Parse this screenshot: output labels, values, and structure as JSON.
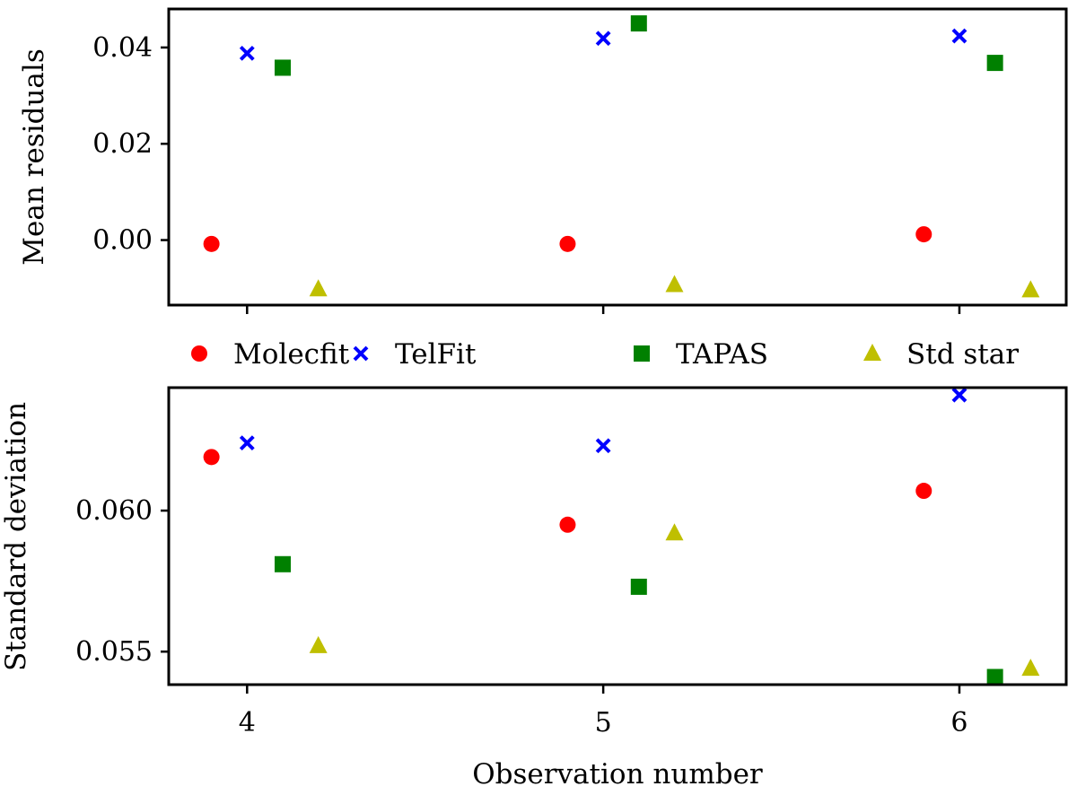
{
  "chart_data": [
    {
      "type": "scatter",
      "ylabel": "Mean residuals",
      "xlabel": "",
      "xlim": [
        3.78,
        6.3
      ],
      "ylim": [
        -0.0135,
        0.048
      ],
      "yticks": [
        0.0,
        0.02,
        0.04
      ],
      "ytick_labels": [
        "0.00",
        "0.02",
        "0.04"
      ],
      "xticks": [
        4,
        5,
        6
      ],
      "xtick_labels": [
        "",
        "",
        ""
      ],
      "series": [
        {
          "name": "Molecfit",
          "marker": "circle",
          "color": "#ff0000",
          "x": [
            3.9,
            4.9,
            5.9
          ],
          "y": [
            -0.0008,
            -0.0008,
            0.0012
          ]
        },
        {
          "name": "TelFit",
          "marker": "x",
          "color": "#0000ff",
          "x": [
            4.0,
            5.0,
            6.0
          ],
          "y": [
            0.0388,
            0.0419,
            0.0424
          ]
        },
        {
          "name": "TAPAS",
          "marker": "square",
          "color": "#008000",
          "x": [
            4.1,
            5.1,
            6.1
          ],
          "y": [
            0.0358,
            0.045,
            0.0368
          ]
        },
        {
          "name": "Std star",
          "marker": "triangle",
          "color": "#bfbf00",
          "x": [
            4.2,
            5.2,
            6.2
          ],
          "y": [
            -0.0102,
            -0.0093,
            -0.0104
          ]
        }
      ]
    },
    {
      "type": "scatter",
      "ylabel": "Standard deviation",
      "xlabel": "Observation number",
      "xlim": [
        3.78,
        6.3
      ],
      "ylim": [
        0.05383,
        0.06436
      ],
      "yticks": [
        0.055,
        0.06
      ],
      "ytick_labels": [
        "0.055",
        "0.060"
      ],
      "xticks": [
        4,
        5,
        6
      ],
      "xtick_labels": [
        "4",
        "5",
        "6"
      ],
      "series": [
        {
          "name": "Molecfit",
          "marker": "circle",
          "color": "#ff0000",
          "x": [
            3.9,
            4.9,
            5.9
          ],
          "y": [
            0.0619,
            0.0595,
            0.0607
          ]
        },
        {
          "name": "TelFit",
          "marker": "x",
          "color": "#0000ff",
          "x": [
            4.0,
            5.0,
            6.0
          ],
          "y": [
            0.0624,
            0.0623,
            0.0641
          ]
        },
        {
          "name": "TAPAS",
          "marker": "square",
          "color": "#008000",
          "x": [
            4.1,
            5.1,
            6.1
          ],
          "y": [
            0.0581,
            0.0573,
            0.0541
          ]
        },
        {
          "name": "Std star",
          "marker": "triangle",
          "color": "#bfbf00",
          "x": [
            4.2,
            5.2,
            6.2
          ],
          "y": [
            0.0552,
            0.0592,
            0.0544
          ]
        }
      ]
    }
  ],
  "legend": {
    "placement": "between-panels",
    "items": [
      {
        "label": "Molecfit",
        "marker": "circle",
        "color": "#ff0000"
      },
      {
        "label": "TelFit",
        "marker": "x",
        "color": "#0000ff"
      },
      {
        "label": "TAPAS",
        "marker": "square",
        "color": "#008000"
      },
      {
        "label": "Std star",
        "marker": "triangle",
        "color": "#bfbf00"
      }
    ]
  }
}
